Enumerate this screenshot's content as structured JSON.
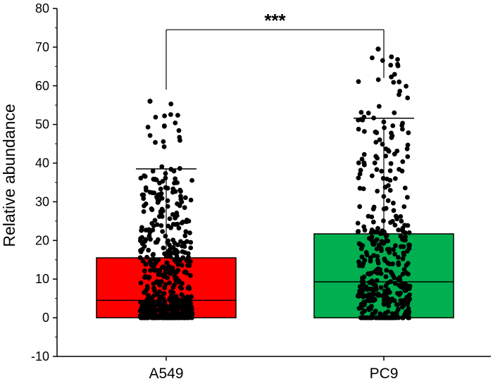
{
  "chart_data": {
    "type": "box",
    "title": "",
    "xlabel": "",
    "ylabel": "Relative abundance",
    "ylim": [
      -10,
      80
    ],
    "yticks": [
      -10,
      0,
      10,
      20,
      30,
      40,
      50,
      60,
      70,
      80
    ],
    "categories": [
      "A549",
      "PC9"
    ],
    "boxes": [
      {
        "name": "A549",
        "color": "#ff0000",
        "q1": 0,
        "median": 4.5,
        "q3": 15.5,
        "whisker_low": 0,
        "whisker_high": 38.5,
        "max_point": 56,
        "n_points": 600
      },
      {
        "name": "PC9",
        "color": "#00b050",
        "q1": 0,
        "median": 9.3,
        "q3": 21.7,
        "whisker_low": 0,
        "whisker_high": 51.6,
        "max_point": 69.5,
        "n_points": 430
      }
    ],
    "significance": {
      "between": [
        "A549",
        "PC9"
      ],
      "label": "***",
      "bracket_y": 74.5
    }
  }
}
